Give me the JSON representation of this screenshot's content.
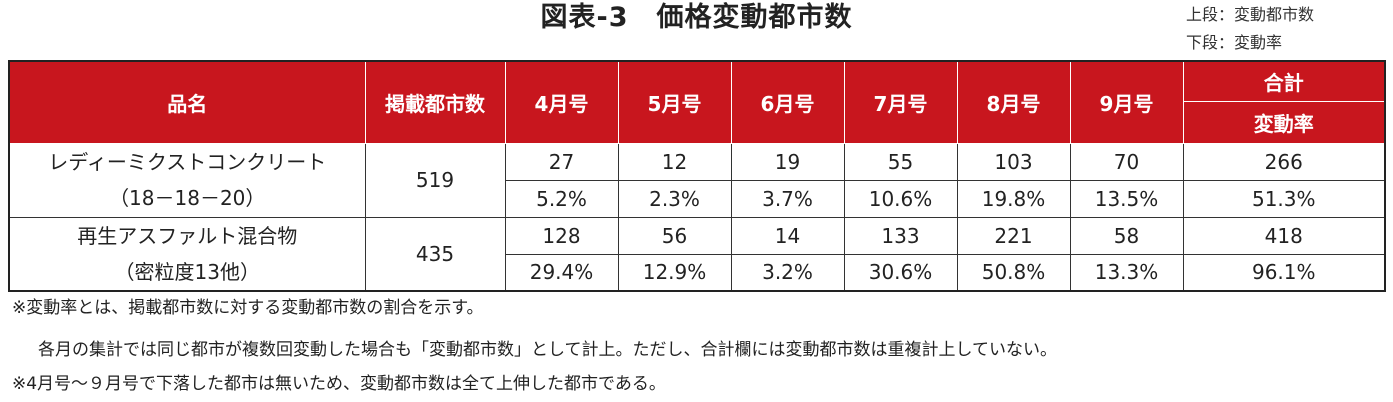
{
  "title": "図表-3　価格変動都市数",
  "legend": {
    "upper": "上段：変動都市数",
    "lower": "下段：変動率"
  },
  "table": {
    "headers": {
      "item": "品名",
      "cities": "掲載都市数",
      "months": [
        "4月号",
        "5月号",
        "6月号",
        "7月号",
        "8月号",
        "9月号"
      ],
      "total": "合計",
      "rate": "変動率"
    },
    "rows": [
      {
        "name_line1": "レディーミクストコンクリート",
        "name_line2": "（18－18－20）",
        "cities": "519",
        "counts": [
          "27",
          "12",
          "19",
          "55",
          "103",
          "70",
          "266"
        ],
        "rates": [
          "5.2%",
          "2.3%",
          "3.7%",
          "10.6%",
          "19.8%",
          "13.5%",
          "51.3%"
        ]
      },
      {
        "name_line1": "再生アスファルト混合物",
        "name_line2": "（密粒度13他）",
        "cities": "435",
        "counts": [
          "128",
          "56",
          "14",
          "133",
          "221",
          "58",
          "418"
        ],
        "rates": [
          "29.4%",
          "12.9%",
          "3.2%",
          "30.6%",
          "50.8%",
          "13.3%",
          "96.1%"
        ]
      }
    ]
  },
  "notes": {
    "n1": "※変動率とは、掲載都市数に対する変動都市数の割合を示す。",
    "n2": "各月の集計では同じ都市が複数回変動した場合も「変動都市数」として計上。ただし、合計欄には変動都市数は重複計上していない。",
    "n3": "※4月号～９月号で下落した都市は無いため、変動都市数は全て上伸した都市である。"
  }
}
